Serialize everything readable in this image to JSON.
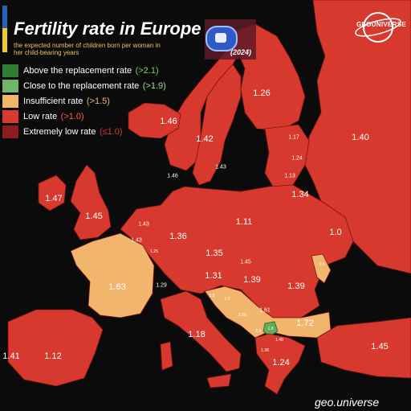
{
  "title": "Fertility rate in Europe",
  "subtitle": "the expected number of children born per woman in her child-bearing years",
  "year": "(2024)",
  "logo_text": "GEOUNIVERSE",
  "watermark": "geo.universe",
  "legend": [
    {
      "label": "Above the replacement rate",
      "threshold": "(>2.1)",
      "color": "#2e7d32",
      "thr_color": "#7ccc67"
    },
    {
      "label": "Close to the replacement rate",
      "threshold": "(>1.9)",
      "color": "#6fb66a",
      "thr_color": "#9be08b"
    },
    {
      "label": "Insufficient rate",
      "threshold": "(>1.5)",
      "color": "#f2b36b",
      "thr_color": "#f2b36b"
    },
    {
      "label": "Low rate",
      "threshold": "(>1.0)",
      "color": "#d9392e",
      "thr_color": "#ff5b4d"
    },
    {
      "label": "Extremely low rate",
      "threshold": "(≤1.0)",
      "color": "#8b1d1d",
      "thr_color": "#d43a30"
    }
  ],
  "colors": {
    "low": "#d8392e",
    "insufficient": "#f2b56d",
    "close": "#5eae5a",
    "sea": "#0b0b0b"
  },
  "countries": [
    {
      "name": "Iceland",
      "value": "1.46"
    },
    {
      "name": "Norway",
      "value": "1.42"
    },
    {
      "name": "Sweden",
      "value": "1.43"
    },
    {
      "name": "Finland",
      "value": "1.26"
    },
    {
      "name": "Russia",
      "value": "1.40"
    },
    {
      "name": "Estonia",
      "value": "1.17"
    },
    {
      "name": "Latvia",
      "value": "1.24"
    },
    {
      "name": "Lithuania",
      "value": "1.13"
    },
    {
      "name": "Denmark",
      "value": "1.46"
    },
    {
      "name": "Belarus",
      "value": "1.34"
    },
    {
      "name": "Ireland",
      "value": "1.47"
    },
    {
      "name": "United Kingdom",
      "value": "1.45"
    },
    {
      "name": "Netherlands",
      "value": "1.43"
    },
    {
      "name": "Belgium",
      "value": "1.43"
    },
    {
      "name": "Luxembourg",
      "value": "1.25"
    },
    {
      "name": "Germany",
      "value": "1.36"
    },
    {
      "name": "Poland",
      "value": "1.11"
    },
    {
      "name": "Ukraine",
      "value": "1.0"
    },
    {
      "name": "France",
      "value": "1.63"
    },
    {
      "name": "Czechia",
      "value": "1.35"
    },
    {
      "name": "Slovakia",
      "value": "1.45"
    },
    {
      "name": "Switzerland",
      "value": "1.29"
    },
    {
      "name": "Austria",
      "value": "1.31"
    },
    {
      "name": "Hungary",
      "value": "1.39"
    },
    {
      "name": "Moldova",
      "value": "1.6"
    },
    {
      "name": "Romania",
      "value": "1.39"
    },
    {
      "name": "Slovenia",
      "value": "1.5"
    },
    {
      "name": "Croatia",
      "value": "1.5"
    },
    {
      "name": "Bosnia and Herzegovina",
      "value": "1.58"
    },
    {
      "name": "Serbia",
      "value": "1.61"
    },
    {
      "name": "Bulgaria",
      "value": "1.72"
    },
    {
      "name": "Italy",
      "value": "1.18"
    },
    {
      "name": "Kosovo",
      "value": "1.9"
    },
    {
      "name": "Montenegro",
      "value": "1.5"
    },
    {
      "name": "Albania",
      "value": "1.38"
    },
    {
      "name": "North Macedonia",
      "value": "1.48"
    },
    {
      "name": "Greece",
      "value": "1.24"
    },
    {
      "name": "Turkey",
      "value": "1.45"
    },
    {
      "name": "Portugal",
      "value": "1.41"
    },
    {
      "name": "Spain",
      "value": "1.12"
    }
  ]
}
